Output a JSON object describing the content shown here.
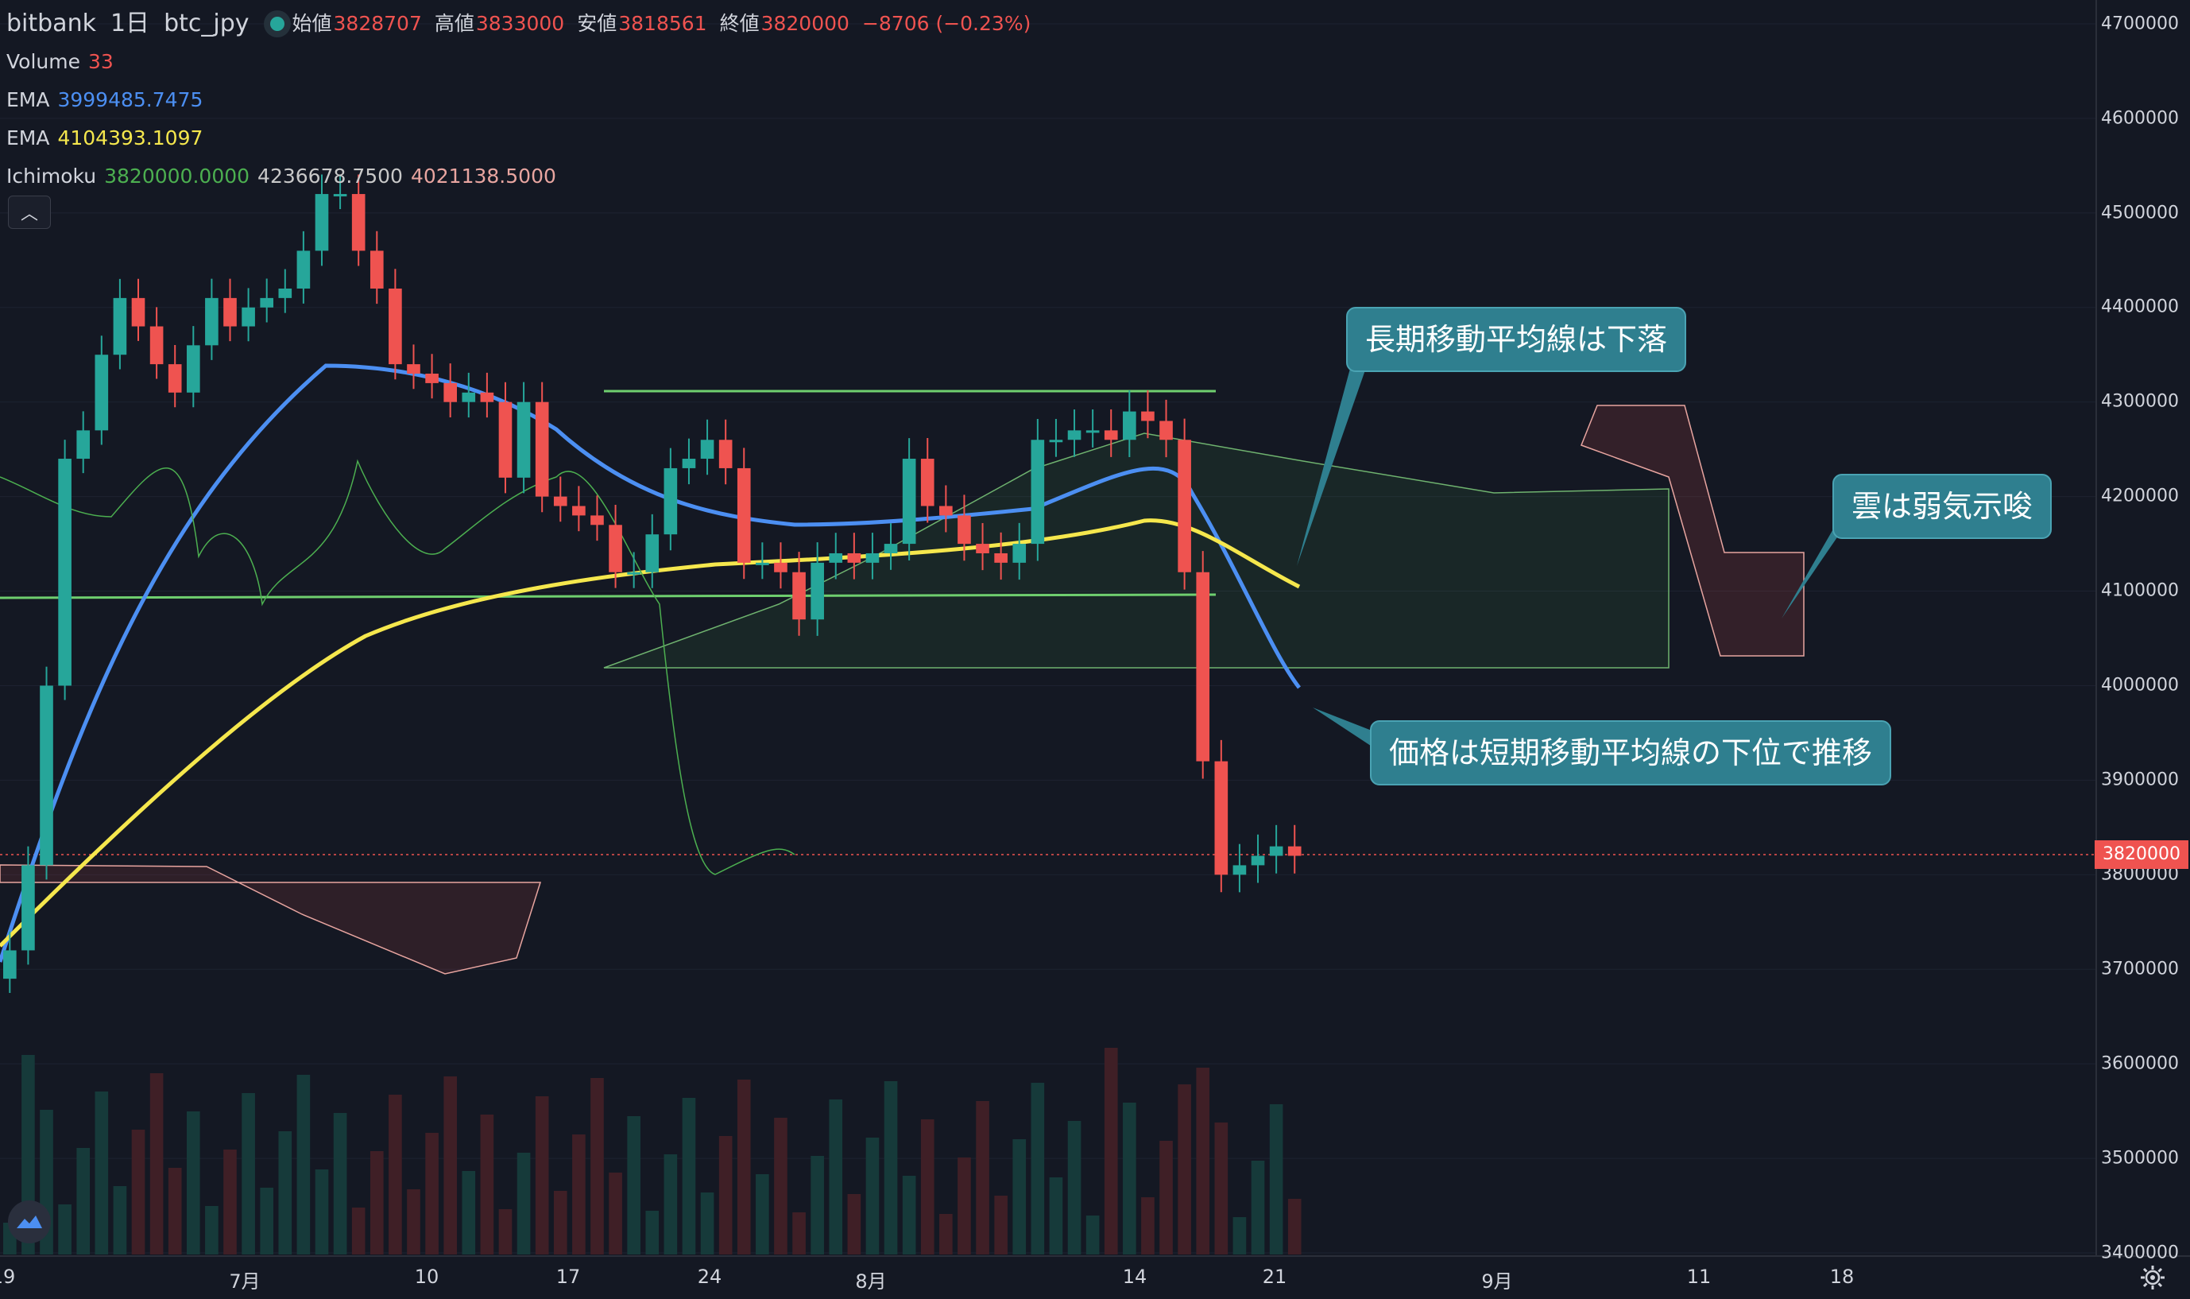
{
  "header": {
    "exchange": "bitbank",
    "interval": "1日",
    "symbol": "btc_jpy",
    "ohlc": [
      {
        "label": "始値",
        "value": "3828707"
      },
      {
        "label": "高値",
        "value": "3833000"
      },
      {
        "label": "安値",
        "value": "3818561"
      },
      {
        "label": "終値",
        "value": "3820000"
      }
    ],
    "change": "−8706 (−0.23%)"
  },
  "indicators": {
    "volume": {
      "label": "Volume",
      "value": "33",
      "color": "#ef5350"
    },
    "ema_short": {
      "label": "EMA",
      "value": "3999485.7475",
      "color": "#4c8ff2"
    },
    "ema_long": {
      "label": "EMA",
      "value": "4104393.1097",
      "color": "#f5e74d"
    },
    "ichimoku": {
      "label": "Ichimoku",
      "values": [
        "3820000.0000",
        "4236678.7500",
        "4021138.5000"
      ],
      "colors": [
        "#4caf50",
        "#c8c8c8",
        "#e8a5a0"
      ]
    }
  },
  "annotations": [
    {
      "text": "長期移動平均線は下落"
    },
    {
      "text": "雲は弱気示唆"
    },
    {
      "text": "価格は短期移動平均線の下位で推移"
    }
  ],
  "price_axis": {
    "ticks": [
      "4700000",
      "4600000",
      "4500000",
      "4400000",
      "4300000",
      "4200000",
      "4100000",
      "4000000",
      "3900000",
      "3800000",
      "3700000",
      "3600000",
      "3500000",
      "3400000"
    ],
    "current_price": "3820000"
  },
  "time_axis": {
    "ticks": [
      "19",
      "7月",
      "10",
      "17",
      "24",
      "8月",
      "14",
      "21",
      "9月",
      "11",
      "18"
    ]
  },
  "colors": {
    "background": "#141823",
    "up": "#26a69a",
    "down": "#ef5350",
    "callout": "#2f7f8f"
  },
  "chart_data": {
    "type": "candlestick",
    "candles_close": [
      3720000,
      3810000,
      4000000,
      4240000,
      4270000,
      4350000,
      4410000,
      4380000,
      4340000,
      4310000,
      4360000,
      4410000,
      4380000,
      4400000,
      4410000,
      4420000,
      4460000,
      4520000,
      4520000,
      4460000,
      4420000,
      4340000,
      4330000,
      4320000,
      4300000,
      4310000,
      4300000,
      4220000,
      4300000,
      4200000,
      4190000,
      4180000,
      4170000,
      4120000,
      4120000,
      4160000,
      4230000,
      4240000,
      4260000,
      4230000,
      4130000,
      4130000,
      4120000,
      4070000,
      4130000,
      4140000,
      4130000,
      4140000,
      4150000,
      4240000,
      4190000,
      4180000,
      4150000,
      4140000,
      4130000,
      4150000,
      4260000,
      4260000,
      4270000,
      4270000,
      4260000,
      4290000,
      4280000,
      4260000,
      4120000,
      3920000,
      3800000,
      3810000,
      3820000,
      3830000,
      3820000
    ]
  }
}
